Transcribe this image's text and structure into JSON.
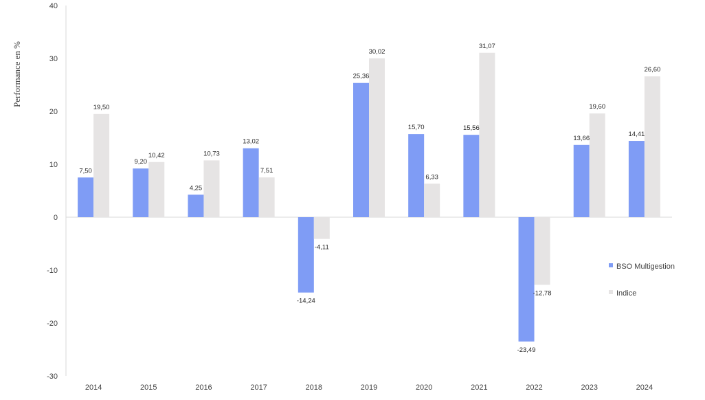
{
  "chart_data": {
    "type": "bar",
    "title": "",
    "xlabel": "",
    "ylabel": "Performance en %",
    "ylim": [
      -30,
      40
    ],
    "yticks": [
      "-30",
      "-20",
      "-10",
      "0",
      "10",
      "20",
      "30",
      "40"
    ],
    "ytick_values": [
      -30,
      -20,
      -10,
      0,
      10,
      20,
      30,
      40
    ],
    "categories": [
      "2014",
      "2015",
      "2016",
      "2017",
      "2018",
      "2019",
      "2020",
      "2021",
      "2022",
      "2023",
      "2024"
    ],
    "grid": false,
    "legend_position": "right",
    "series": [
      {
        "name": "BSO Multigestion",
        "color": "#7f9cf5",
        "values": [
          7.5,
          9.2,
          4.25,
          13.02,
          -14.24,
          25.36,
          15.7,
          15.56,
          -23.49,
          13.66,
          14.41
        ],
        "labels": [
          "7,50",
          "9,20",
          "4,25",
          "13,02",
          "-14,24",
          "25,36",
          "15,70",
          "15,56",
          "-23,49",
          "13,66",
          "14,41"
        ]
      },
      {
        "name": "Indice",
        "color": "#e6e4e4",
        "values": [
          19.5,
          10.42,
          10.73,
          7.51,
          -4.11,
          30.02,
          6.33,
          31.07,
          -12.78,
          19.6,
          26.6
        ],
        "labels": [
          "19,50",
          "10,42",
          "10,73",
          "7,51",
          "-4,11",
          "30,02",
          "6,33",
          "31,07",
          "-12,78",
          "19,60",
          "26,60"
        ]
      }
    ]
  }
}
